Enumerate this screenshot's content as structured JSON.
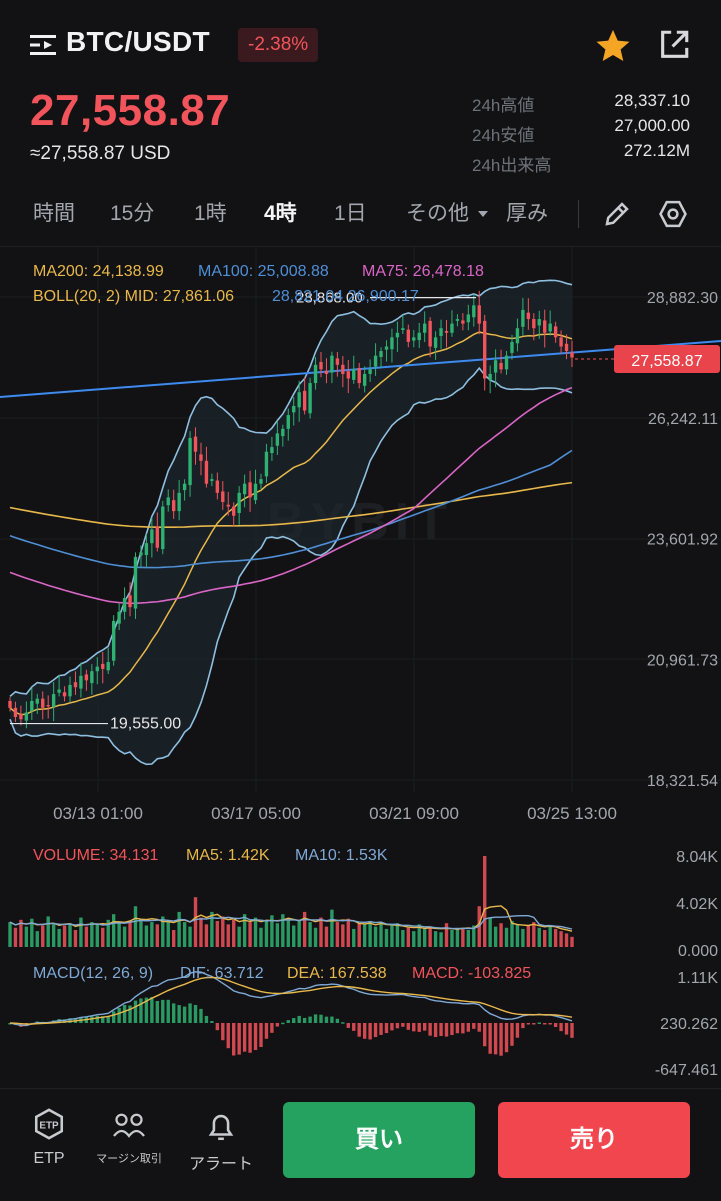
{
  "header": {
    "pair": "BTC/USDT",
    "change": "-2.38%",
    "price": "27,558.87",
    "usd_price": "≈27,558.87 USD",
    "stats": [
      {
        "label": "24h高値",
        "value": "28,337.10"
      },
      {
        "label": "24h安値",
        "value": "27,000.00"
      },
      {
        "label": "24h出来高",
        "value": "272.12M"
      }
    ]
  },
  "tabs": {
    "items": [
      "時間",
      "15分",
      "1時",
      "4時",
      "1日",
      "その他",
      "厚み"
    ],
    "active": "4時"
  },
  "icons": {
    "menu": "menu-icon",
    "favorite": "star-icon",
    "share": "share-icon",
    "draw": "pencil-icon",
    "settings": "gear-icon",
    "dropdown": "caret-down-icon"
  },
  "indicators": {
    "ma200": "MA200: 24,138.99",
    "ma100": "MA100: 25,008.88",
    "ma75": "MA75: 26,478.18",
    "boll": "BOLL(20, 2) MID: 27,861.06",
    "boll_rest": "28,821.04 26,900.17",
    "volume": "VOLUME: 34.131",
    "vol_ma5": "MA5: 1.42K",
    "vol_ma10": "MA10: 1.53K",
    "macd_params": "MACD(12, 26, 9)",
    "dif": "DIF: 63.712",
    "dea": "DEA: 167.538",
    "macd": "MACD: -103.825"
  },
  "watermark": "BYBIT",
  "colors": {
    "up": "#2fb172",
    "down": "#f2545b",
    "background": "#121214",
    "ma200": "#e8b84a",
    "ma100": "#4f8fd6",
    "ma75": "#d966c6",
    "boll": "#8fbfe0",
    "trendline": "#3d8bf0",
    "star": "#f5a524"
  },
  "chart_data": {
    "type": "candlestick",
    "timeframe": "4時",
    "x_tick_labels": [
      "03/13 01:00",
      "03/17 05:00",
      "03/21 09:00",
      "03/25 13:00"
    ],
    "price_axis": {
      "ticks": [
        28882.3,
        26242.11,
        23601.92,
        20961.73,
        18321.54
      ],
      "tick_labels": [
        "28,882.30",
        "26,242.11",
        "23,601.92",
        "20,961.73",
        "18,321.54"
      ]
    },
    "current_price": 27558.87,
    "current_price_label": "27,558.87",
    "high_marker": {
      "value": 28868.0,
      "label": "28,868.00"
    },
    "low_marker": {
      "value": 19555.0,
      "label": "19,555.00"
    },
    "closes": [
      19900,
      19700,
      19650,
      19800,
      20050,
      20100,
      19900,
      19950,
      20200,
      20300,
      20150,
      20400,
      20350,
      20600,
      20500,
      20700,
      20800,
      20750,
      20900,
      21800,
      22000,
      22300,
      22100,
      23200,
      23300,
      23500,
      23800,
      23400,
      24300,
      24500,
      24200,
      24600,
      24800,
      25800,
      25500,
      25300,
      24800,
      24900,
      24600,
      24400,
      24300,
      24100,
      24600,
      24800,
      24500,
      24800,
      24900,
      25500,
      25600,
      25900,
      26000,
      26300,
      26500,
      26800,
      26400,
      27000,
      27400,
      27300,
      27200,
      27600,
      27400,
      27200,
      27100,
      27300,
      27000,
      27200,
      27300,
      27600,
      27700,
      27800,
      28000,
      28100,
      28200,
      27900,
      28000,
      28100,
      28300,
      27800,
      28000,
      28200,
      28100,
      28300,
      28400,
      28300,
      28500,
      28700,
      28300,
      27100,
      27200,
      27500,
      27300,
      27600,
      27900,
      28200,
      28600,
      28400,
      28200,
      28400,
      28100,
      28300,
      28000,
      27800,
      27700,
      27560
    ],
    "volume_axis": {
      "tick_labels": [
        "8.04K",
        "4.02K",
        "0.000"
      ],
      "max": 8040
    },
    "volumes": [
      2200,
      1700,
      2400,
      1800,
      2500,
      1400,
      1900,
      2700,
      2000,
      1600,
      1900,
      2100,
      1500,
      2600,
      1800,
      2200,
      2000,
      1700,
      2400,
      2900,
      2100,
      1800,
      2300,
      3600,
      2500,
      1900,
      2200,
      2000,
      2700,
      2400,
      1500,
      3100,
      2200,
      1800,
      4400,
      2600,
      2000,
      3100,
      2300,
      2700,
      2000,
      2400,
      1800,
      2900,
      2200,
      2600,
      1700,
      2400,
      2800,
      2100,
      2900,
      2500,
      1900,
      2300,
      3100,
      2200,
      1700,
      2600,
      1800,
      3300,
      2200,
      2000,
      2500,
      1600,
      2100,
      2000,
      2300,
      1800,
      2200,
      1600,
      1900,
      2100,
      1500,
      1700,
      1400,
      2000,
      1600,
      1800,
      1400,
      1300,
      2100,
      1500,
      1600,
      1700,
      1500,
      1900,
      3600,
      8040,
      2600,
      1800,
      2100,
      1700,
      2300,
      2000,
      1600,
      1900,
      2200,
      1700,
      1500,
      1900,
      1600,
      1400,
      1200,
      900
    ],
    "macd_axis": {
      "tick_labels": [
        "1.11K",
        "230.262",
        "-647.461"
      ],
      "max": 1110,
      "min": -647.461
    }
  },
  "bottom": {
    "nav": [
      {
        "label": "ETP",
        "icon": "etp-icon"
      },
      {
        "label": "マージン取引",
        "icon": "margin-icon"
      },
      {
        "label": "アラート",
        "icon": "bell-icon"
      }
    ],
    "buy": "買い",
    "sell": "売り"
  }
}
